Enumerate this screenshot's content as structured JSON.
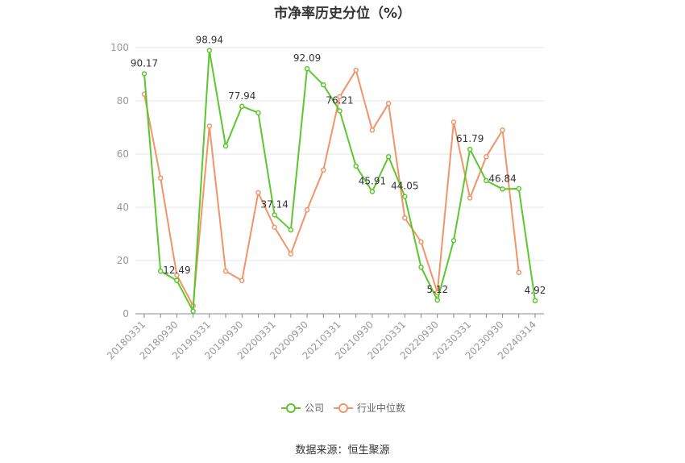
{
  "title": "市净率历史分位（%）",
  "source": "数据来源：恒生聚源",
  "colors": {
    "company": "#5cc72e",
    "industry": "#f2946a",
    "grid": "#e5e5e5",
    "axis": "#888888"
  },
  "chart_data": {
    "type": "line",
    "title": "市净率历史分位（%）",
    "xlabel": "",
    "ylabel": "",
    "ylim": [
      0,
      100
    ],
    "yticks": [
      0,
      20,
      40,
      60,
      80,
      100
    ],
    "grid": true,
    "legend_position": "bottom",
    "x": [
      "20180331",
      "20180630",
      "20180930",
      "20181231",
      "20190331",
      "20190630",
      "20190930",
      "20191231",
      "20200331",
      "20200630",
      "20200930",
      "20201231",
      "20210331",
      "20210630",
      "20210930",
      "20211231",
      "20220331",
      "20220630",
      "20220930",
      "20221231",
      "20230331",
      "20230630",
      "20230930",
      "20231231",
      "20240314"
    ],
    "x_tick_labels": [
      "20180331",
      "20180930",
      "20190331",
      "20190930",
      "20200331",
      "20200930",
      "20210331",
      "20210930",
      "20220331",
      "20220930",
      "20230331",
      "20230930",
      "20240314"
    ],
    "series": [
      {
        "name": "公司",
        "values": [
          90.17,
          16.0,
          12.49,
          1.0,
          98.94,
          63.0,
          77.94,
          75.5,
          37.14,
          31.5,
          92.09,
          86.0,
          76.21,
          55.5,
          45.91,
          59.0,
          44.05,
          17.5,
          5.12,
          27.5,
          61.79,
          50.0,
          46.84,
          47.0,
          4.92
        ],
        "labels": {
          "0": "90.17",
          "2": "12.49",
          "4": "98.94",
          "6": "77.94",
          "8": "37.14",
          "10": "92.09",
          "12": "76.21",
          "14": "45.91",
          "16": "44.05",
          "18": "5.12",
          "20": "61.79",
          "22": "46.84",
          "24": "4.92"
        }
      },
      {
        "name": "行业中位数",
        "values": [
          82.5,
          51.0,
          14.5,
          3.0,
          70.5,
          16.0,
          12.5,
          45.5,
          32.5,
          22.5,
          39.0,
          54.0,
          81.5,
          91.5,
          69.0,
          79.0,
          36.0,
          27.0,
          8.0,
          72.0,
          43.5,
          59.0,
          69.0,
          15.5,
          null
        ]
      }
    ]
  }
}
